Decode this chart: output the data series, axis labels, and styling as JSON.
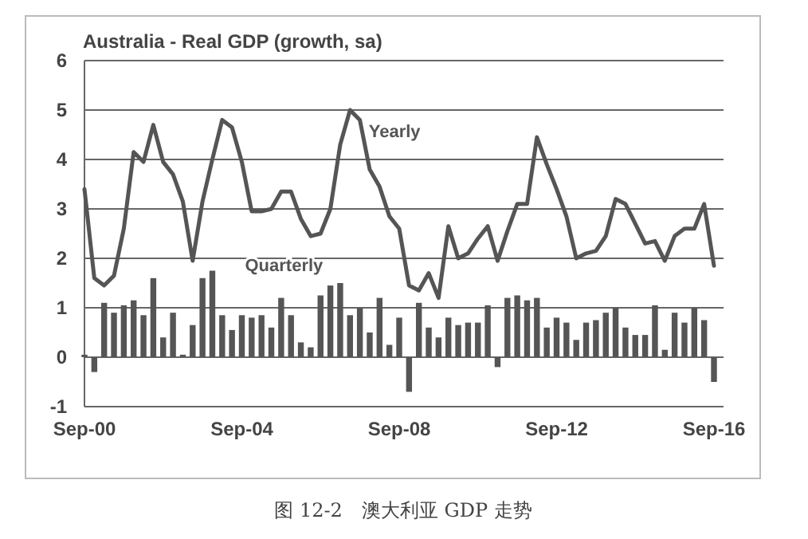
{
  "chart_data": {
    "type": "bar",
    "title": "Australia - Real GDP (growth, sa)",
    "categories": [
      "Sep-00",
      null,
      null,
      null,
      null,
      null,
      null,
      null,
      null,
      null,
      null,
      null,
      null,
      null,
      null,
      null,
      "Sep-04",
      null,
      null,
      null,
      null,
      null,
      null,
      null,
      null,
      null,
      null,
      null,
      null,
      null,
      null,
      null,
      "Sep-08",
      null,
      null,
      null,
      null,
      null,
      null,
      null,
      null,
      null,
      null,
      null,
      null,
      null,
      null,
      null,
      "Sep-12",
      null,
      null,
      null,
      null,
      null,
      null,
      null,
      null,
      null,
      null,
      null,
      null,
      null,
      null,
      null,
      "Sep-16"
    ],
    "series": [
      {
        "name": "Quarterly",
        "color": "#555555",
        "values": [
          0.05,
          -0.3,
          1.1,
          0.9,
          1.05,
          1.15,
          0.85,
          1.6,
          0.4,
          0.9,
          0.05,
          0.65,
          1.6,
          1.75,
          0.85,
          0.55,
          0.85,
          0.8,
          0.85,
          0.6,
          1.2,
          0.85,
          0.3,
          0.2,
          1.25,
          1.45,
          1.5,
          0.85,
          1.0,
          0.5,
          1.2,
          0.25,
          0.8,
          -0.7,
          1.1,
          0.6,
          0.4,
          0.8,
          0.65,
          0.7,
          0.7,
          1.05,
          -0.2,
          1.2,
          1.25,
          1.15,
          1.2,
          0.6,
          0.8,
          0.7,
          0.35,
          0.7,
          0.75,
          0.9,
          1.0,
          0.6,
          0.45,
          0.45,
          1.05,
          0.15,
          0.9,
          0.7,
          1.0,
          0.75,
          -0.5
        ]
      },
      {
        "name": "Yearly",
        "type": "line",
        "color": "#555555",
        "values": [
          3.4,
          1.6,
          1.45,
          1.65,
          2.6,
          4.15,
          3.95,
          4.7,
          3.95,
          3.7,
          3.15,
          1.95,
          3.15,
          4.0,
          4.8,
          4.65,
          3.95,
          2.95,
          2.95,
          3.0,
          3.35,
          3.35,
          2.8,
          2.45,
          2.5,
          3.0,
          4.3,
          5.0,
          4.8,
          3.8,
          3.45,
          2.85,
          2.6,
          1.45,
          1.35,
          1.7,
          1.2,
          2.65,
          2.0,
          2.1,
          2.4,
          2.65,
          1.95,
          2.55,
          3.1,
          3.1,
          4.45,
          3.9,
          3.4,
          2.85,
          2.0,
          2.1,
          2.15,
          2.45,
          3.2,
          3.1,
          2.7,
          2.3,
          2.35,
          1.95,
          2.45,
          2.6,
          2.6,
          3.1,
          1.85
        ]
      }
    ],
    "ylim": [
      -1,
      6
    ],
    "yticks": [
      -1,
      0,
      1,
      2,
      3,
      4,
      5,
      6
    ],
    "grid": "y",
    "annotations": [
      "图 12-2　澳大利亚 GDP 走势"
    ]
  }
}
